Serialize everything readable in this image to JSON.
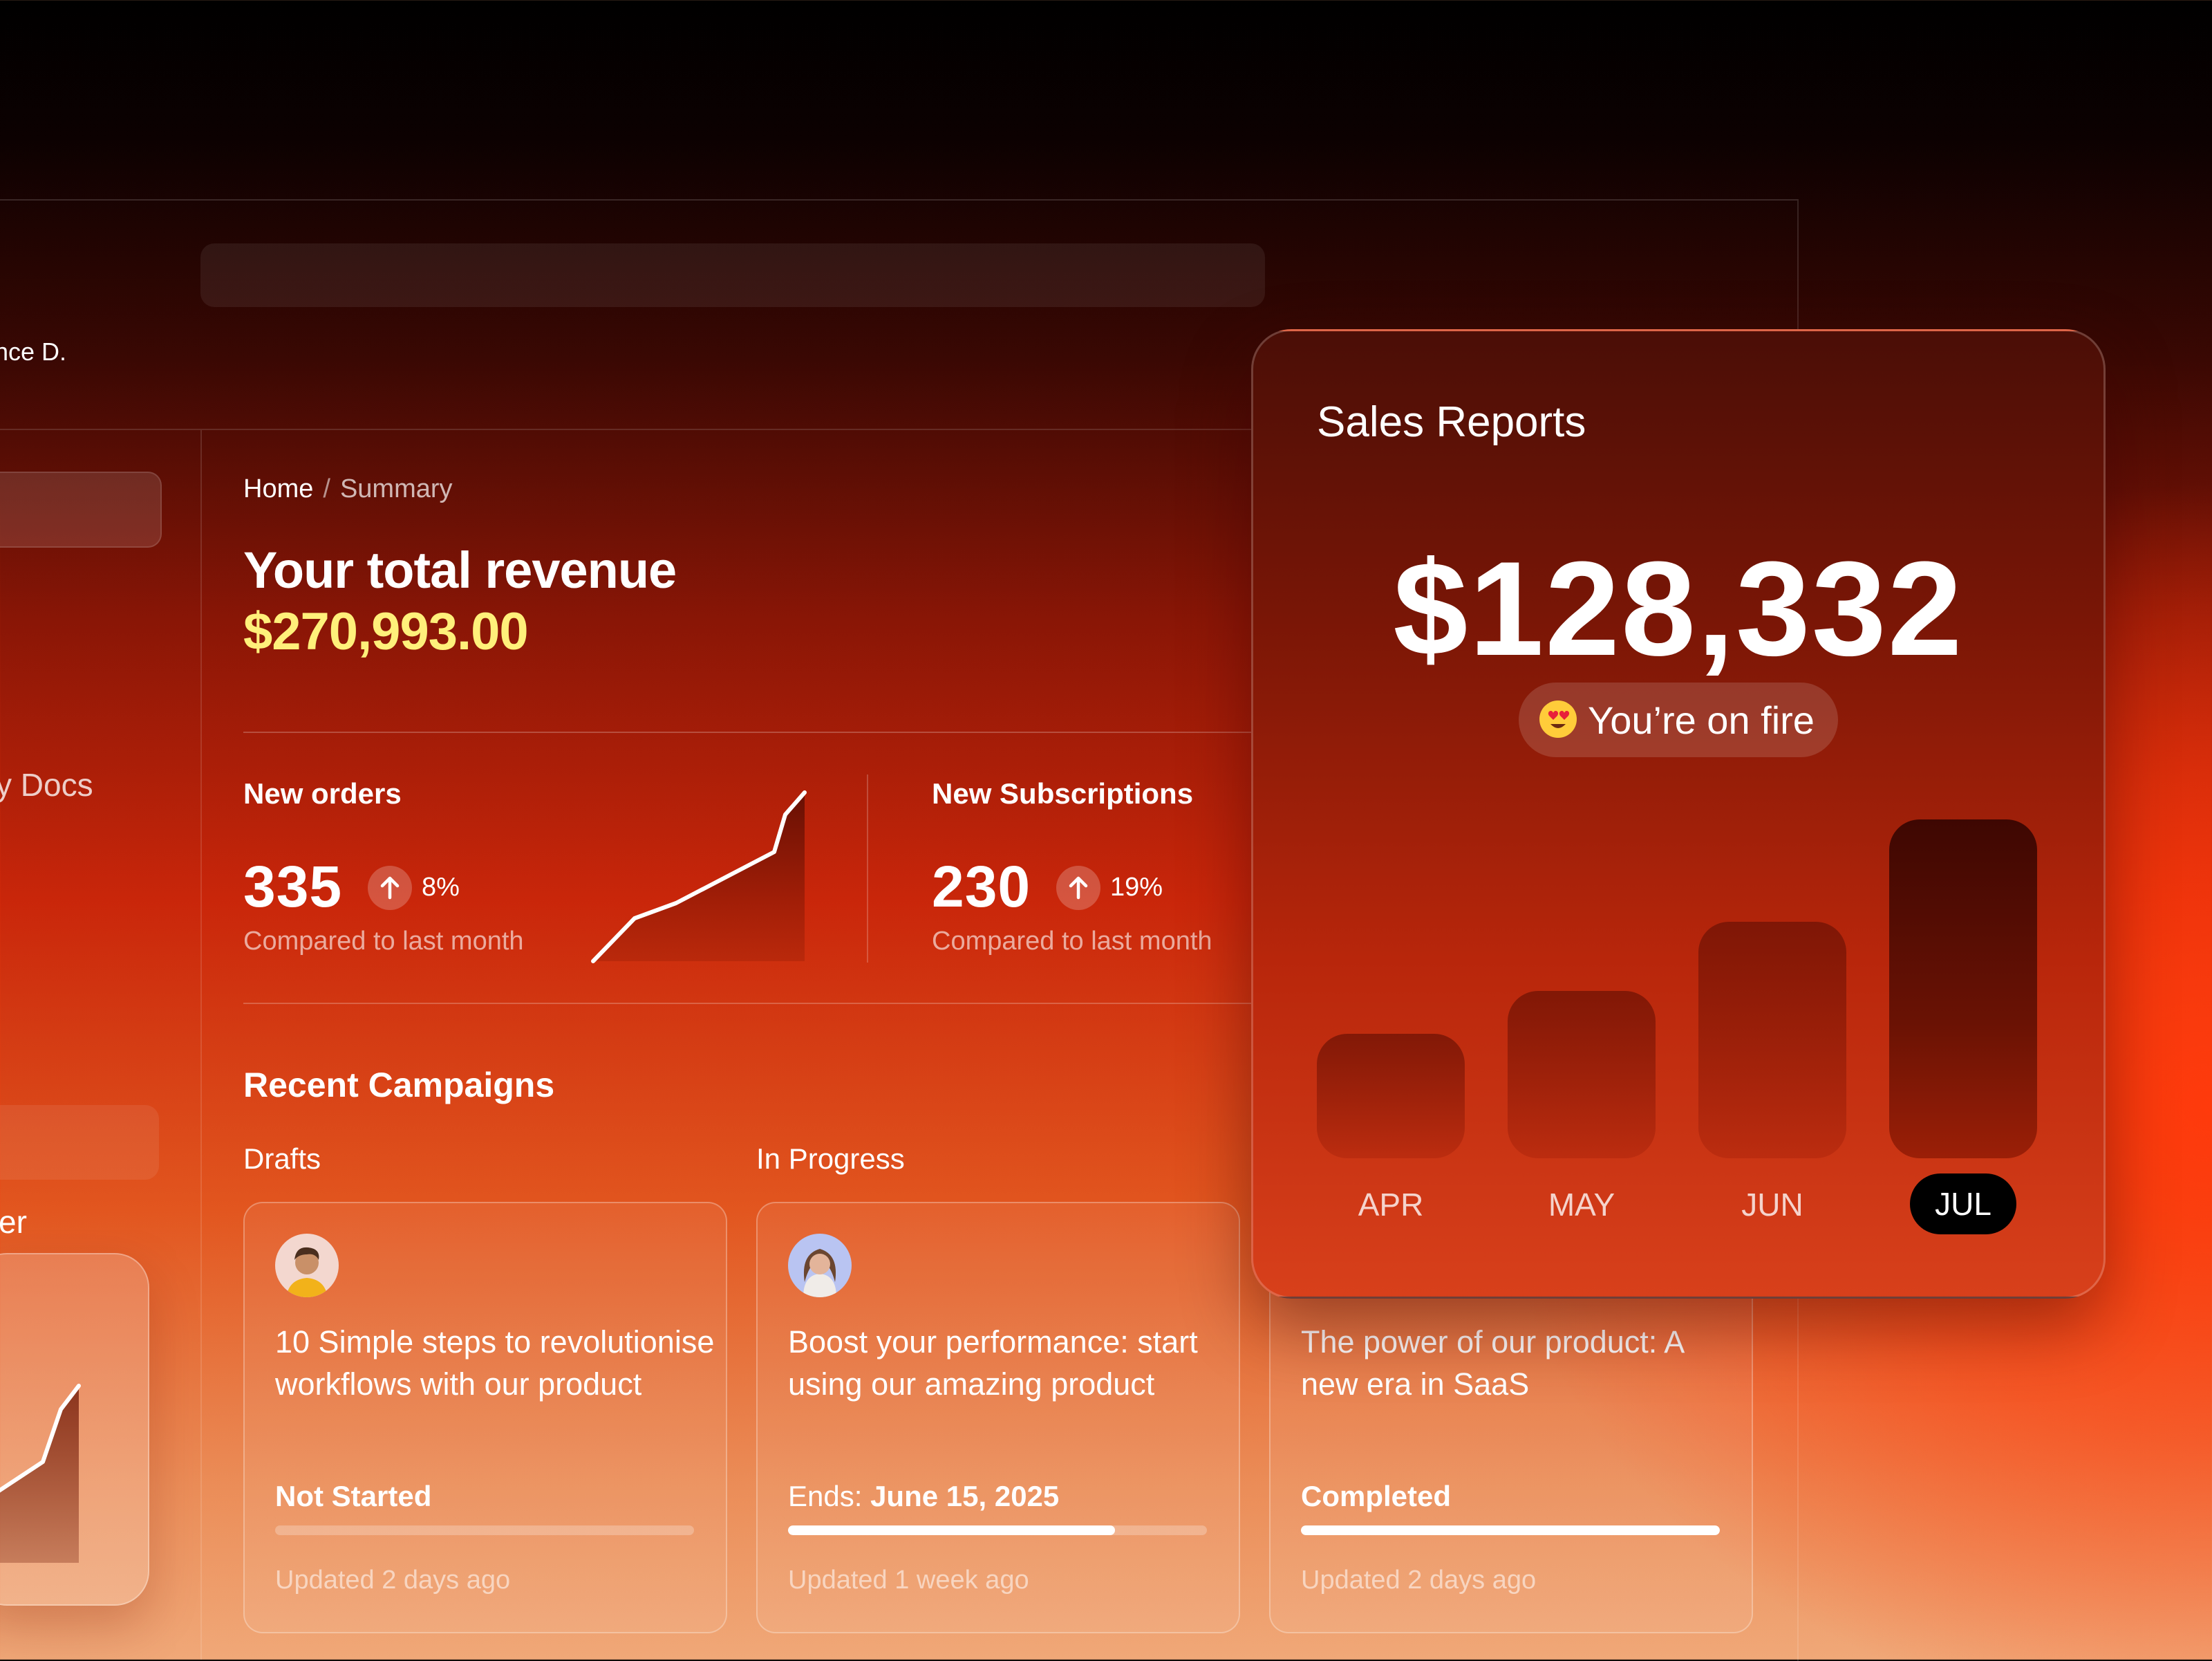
{
  "header": {
    "user_name": "nce D."
  },
  "sidebar": {
    "docs_label": "y Docs",
    "item_label": "er"
  },
  "breadcrumb": {
    "home": "Home",
    "separator": "/",
    "current": "Summary"
  },
  "revenue": {
    "title": "Your total revenue",
    "value": "$270,993.00"
  },
  "stats": [
    {
      "label": "New orders",
      "value": "335",
      "change": "8%",
      "compare": "Compared to last month"
    },
    {
      "label": "New Subscriptions",
      "value": "230",
      "change": "19%",
      "compare": "Compared to last month"
    }
  ],
  "campaigns": {
    "title": "Recent Campaigns",
    "columns": [
      "Drafts",
      "In Progress"
    ],
    "cards": [
      {
        "title": "10 Simple steps to revolutionise workflows with our product",
        "status": "Not Started",
        "progress": 0,
        "updated": "Updated 2 days ago"
      },
      {
        "title": "Boost your performance: start using our amazing product",
        "status_prefix": "Ends:",
        "status": "June 15, 2025",
        "progress": 0.78,
        "updated": "Updated 1 week ago"
      },
      {
        "title": "The power of our product: A new era in SaaS",
        "status": "Completed",
        "progress": 1.0,
        "updated": "Updated 2 days ago"
      }
    ]
  },
  "sales_report": {
    "title": "Sales Reports",
    "value": "$128,332",
    "badge": "You’re on fire",
    "months": [
      "APR",
      "MAY",
      "JUN",
      "JUL"
    ],
    "relative_values": [
      0.38,
      0.51,
      0.71,
      1.0
    ],
    "active_month": "JUL"
  },
  "colors": {
    "revenue_accent": "#fff07a",
    "active_pill": "#000000"
  }
}
